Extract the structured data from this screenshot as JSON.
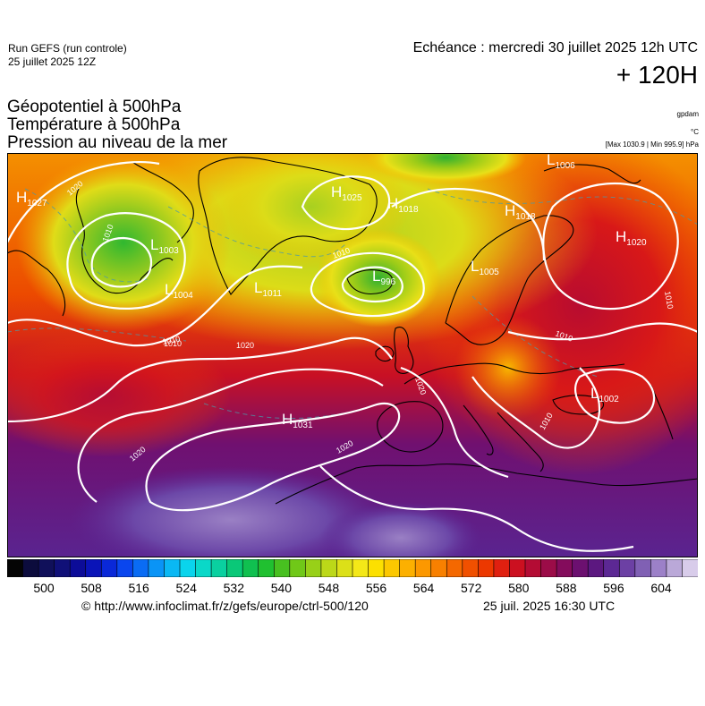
{
  "header": {
    "run_name": "Run GEFS (run controle)",
    "run_date": "25 juillet 2025 12Z",
    "valid_time": "Echéance : mercredi 30 juillet 2025 12h UTC",
    "lead_time": "+ 120H"
  },
  "parameters": [
    "Géopotentiel à 500hPa",
    "Température à 500hPa",
    "Pression au niveau de la mer"
  ],
  "units": {
    "geopotential": "gpdam",
    "temperature": "°C",
    "pressure_maxmin": "[Max 1030.9 | Min 995.9] hPa"
  },
  "pressure_centers": [
    {
      "type": "H",
      "value": "1027"
    },
    {
      "type": "L",
      "value": "1003"
    },
    {
      "type": "L",
      "value": "1004"
    },
    {
      "type": "H",
      "value": "1025"
    },
    {
      "type": "H",
      "value": "1018"
    },
    {
      "type": "L",
      "value": "1011"
    },
    {
      "type": "L",
      "value": "996"
    },
    {
      "type": "L",
      "value": "1005"
    },
    {
      "type": "H",
      "value": "1018"
    },
    {
      "type": "H",
      "value": "1020"
    },
    {
      "type": "L",
      "value": "1006"
    },
    {
      "type": "H",
      "value": "1031"
    },
    {
      "type": "L",
      "value": "1002"
    }
  ],
  "isobar_labels": [
    "1020",
    "1010",
    "1010",
    "1010",
    "1020",
    "1010",
    "1020",
    "1020",
    "1010",
    "1010",
    "1010",
    "1020"
  ],
  "colorbar": {
    "tick_labels": [
      "500",
      "508",
      "516",
      "524",
      "532",
      "540",
      "548",
      "556",
      "564",
      "572",
      "580",
      "588",
      "596",
      "604"
    ],
    "colors": [
      "#050505",
      "#0c0c3d",
      "#10105a",
      "#101078",
      "#0c0c98",
      "#0a14b8",
      "#0a28d8",
      "#0a46ee",
      "#0a6cf4",
      "#0a94f6",
      "#0ab8f4",
      "#0ad4ec",
      "#0ad8c8",
      "#0ad0a0",
      "#0ac878",
      "#10c050",
      "#20c030",
      "#48c020",
      "#70c818",
      "#98d018",
      "#bcd818",
      "#dce018",
      "#f4e818",
      "#fce000",
      "#fcc800",
      "#fcb000",
      "#fc9800",
      "#f88000",
      "#f46800",
      "#f05000",
      "#ec3800",
      "#e02010",
      "#cc1020",
      "#b40c34",
      "#9c0c48",
      "#840c5c",
      "#6c1070",
      "#5c1880",
      "#5c2894",
      "#6c40a4",
      "#8060b4",
      "#9c80c8",
      "#baa8d8",
      "#d8ccea"
    ]
  },
  "footer": {
    "source_url": "© http://www.infoclimat.fr/z/gefs/europe/ctrl-500/120",
    "generated": "25 juil. 2025 16:30 UTC"
  }
}
